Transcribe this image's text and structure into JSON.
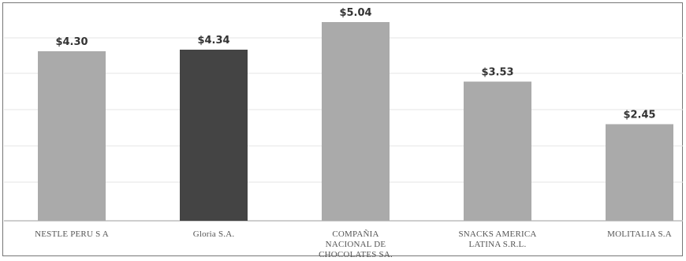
{
  "chart_data": {
    "type": "bar",
    "categories": [
      [
        "NESTLE PERU S A"
      ],
      [
        "Gloria S.A."
      ],
      [
        "COMPAÑIA",
        "NACIONAL DE",
        "CHOCOLATES SA."
      ],
      [
        "SNACKS AMERICA",
        "LATINA S.R.L."
      ],
      [
        "MOLITALIA S.A"
      ]
    ],
    "values": [
      4.3,
      4.34,
      5.04,
      3.53,
      2.45
    ],
    "data_labels": [
      "$4.30",
      "$4.34",
      "$5.04",
      "$3.53",
      "$2.45"
    ],
    "ylim": [
      0,
      5.2
    ],
    "grid": true,
    "highlight_index": 1,
    "colors": {
      "bar": "#aaaaaa",
      "highlight": "#444444",
      "grid": "#e6e6e6",
      "axis": "#bdbdbd"
    }
  }
}
